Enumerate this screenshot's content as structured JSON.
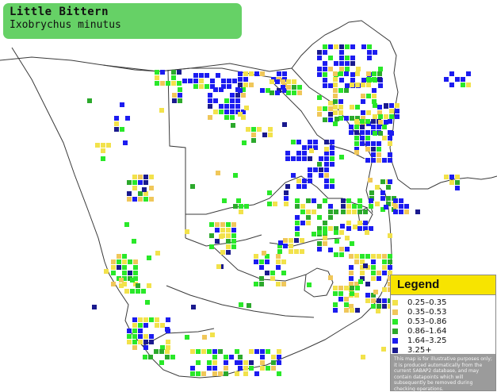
{
  "species": {
    "common_name": "Little Bittern",
    "scientific_name": "Ixobrychus minutus"
  },
  "legend": {
    "title": "Legend",
    "items": [
      {
        "label": "0.25–0.35",
        "color": "#f2e24b"
      },
      {
        "label": "0.35–0.53",
        "color": "#f0c75a"
      },
      {
        "label": "0.53–0.86",
        "color": "#29e829"
      },
      {
        "label": "0.86–1.64",
        "color": "#2ca92c"
      },
      {
        "label": "1.64–3.25",
        "color": "#1c1cf0"
      },
      {
        "label": "3.25+",
        "color": "#1a1a8e"
      }
    ],
    "disclaimer": "This map is for illustrative purposes only; it is produced automatically from the current SABAP2 database, and may contain datapoints which will subsequently be removed during checking operations."
  },
  "map": {
    "land_color": "#ffffff",
    "border_color": "#333333"
  }
}
